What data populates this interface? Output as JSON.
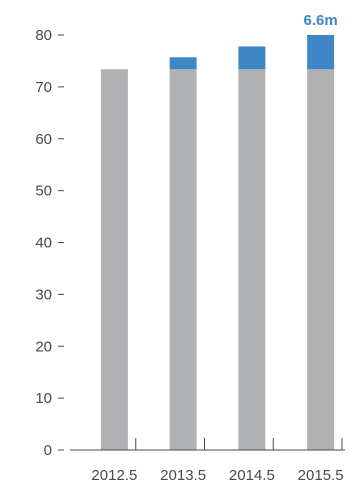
{
  "chart_data": {
    "type": "bar",
    "stacked": true,
    "categories": [
      "2012.5",
      "2013.5",
      "2014.5",
      "2015.5"
    ],
    "series": [
      {
        "values": [
          73.4,
          73.4,
          73.4,
          73.4
        ],
        "color": "#b0b1b3"
      },
      {
        "values": [
          0,
          2.3,
          4.4,
          6.6
        ],
        "color": "#3f86c6"
      }
    ],
    "y_ticks": [
      0,
      10,
      20,
      30,
      40,
      50,
      60,
      70,
      80
    ],
    "ylim": [
      0,
      80
    ],
    "annotations": [
      {
        "category": "2015.5",
        "text": "6.6m",
        "color": "#3f86c6"
      }
    ],
    "grid": false,
    "legend": "none"
  }
}
